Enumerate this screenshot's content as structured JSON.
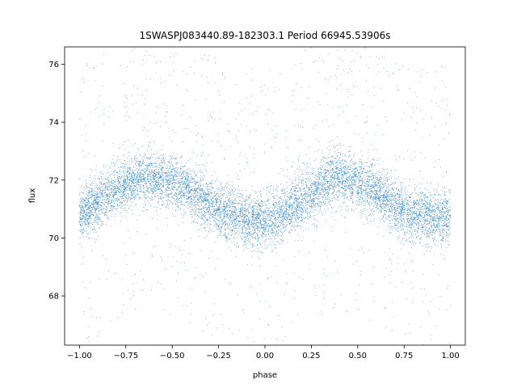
{
  "chart_data": {
    "type": "scatter",
    "title": "1SWASPJ083440.89-182303.1 Period 66945.53906s",
    "xlabel": "phase",
    "ylabel": "flux",
    "xlim": [
      -1.08,
      1.08
    ],
    "ylim": [
      66.3,
      76.6
    ],
    "xticks": [
      -1.0,
      -0.75,
      -0.5,
      -0.25,
      0.0,
      0.25,
      0.5,
      0.75,
      1.0
    ],
    "xtick_labels": [
      "−1.00",
      "−0.75",
      "−0.50",
      "−0.25",
      "0.00",
      "0.25",
      "0.50",
      "0.75",
      "1.00"
    ],
    "yticks": [
      68,
      70,
      72,
      74,
      76
    ],
    "ytick_labels": [
      "68",
      "70",
      "72",
      "74",
      "76"
    ],
    "grid": false,
    "series_color": "#1f77b4",
    "series": [
      {
        "x": [
          -1.0,
          -0.9,
          -0.8,
          -0.7,
          -0.65,
          -0.6,
          -0.5,
          -0.4,
          -0.3,
          -0.2,
          -0.1,
          0.0,
          0.1,
          0.2,
          0.3,
          0.35,
          0.4,
          0.5,
          0.6,
          0.7,
          0.8,
          0.9,
          1.0
        ],
        "y": [
          70.8,
          71.2,
          71.7,
          72.0,
          72.1,
          72.1,
          71.9,
          71.6,
          71.1,
          70.8,
          70.6,
          70.6,
          70.8,
          71.3,
          71.8,
          72.1,
          72.1,
          71.9,
          71.6,
          71.1,
          70.8,
          70.7,
          70.7
        ]
      }
    ]
  }
}
